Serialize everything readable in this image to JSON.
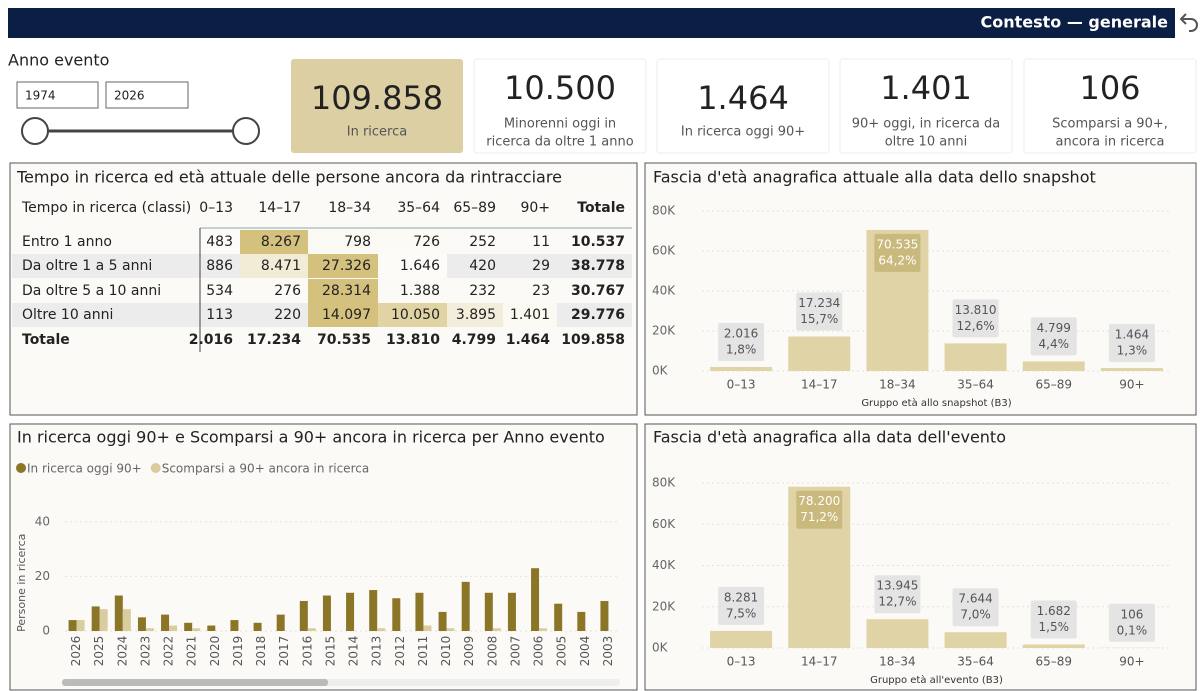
{
  "header": {
    "title": "Contesto — generale"
  },
  "filter": {
    "label": "Anno evento",
    "from": "1974",
    "to": "2026"
  },
  "kpis": [
    {
      "value": "109.858",
      "label": [
        "In ricerca"
      ]
    },
    {
      "value": "10.500",
      "label": [
        "Minorenni oggi in",
        "ricerca da oltre 1 anno"
      ]
    },
    {
      "value": "1.464",
      "label": [
        "In ricerca oggi 90+"
      ]
    },
    {
      "value": "1.401",
      "label": [
        "90+ oggi, in ricerca da",
        "oltre 10 anni"
      ]
    },
    {
      "value": "106",
      "label": [
        "Scomparsi a 90+,",
        "ancora in ricerca"
      ]
    }
  ],
  "table": {
    "title": "Tempo in ricerca ed età attuale delle persone ancora da rintracciare",
    "columns": [
      "Tempo in ricerca (classi)",
      "0–13",
      "14–17",
      "18–34",
      "35–64",
      "65–89",
      "90+",
      "Totale"
    ],
    "rows": [
      [
        "Entro 1 anno",
        "483",
        "8.267",
        "798",
        "726",
        "252",
        "11",
        "10.537"
      ],
      [
        "Da oltre 1 a 5 anni",
        "886",
        "8.471",
        "27.326",
        "1.646",
        "420",
        "29",
        "38.778"
      ],
      [
        "Da oltre 5 a 10 anni",
        "534",
        "276",
        "28.314",
        "1.388",
        "232",
        "23",
        "30.767"
      ],
      [
        "Oltre 10 anni",
        "113",
        "220",
        "14.097",
        "10.050",
        "3.895",
        "1.401",
        "29.776"
      ]
    ],
    "total": [
      "Totale",
      "2.016",
      "17.234",
      "70.535",
      "13.810",
      "4.799",
      "1.464",
      "109.858"
    ]
  },
  "chart_data": [
    {
      "type": "bar",
      "title": "Fascia d'età anagrafica attuale alla data dello snapshot",
      "categories": [
        "0–13",
        "14–17",
        "18–34",
        "35–64",
        "65–89",
        "90+"
      ],
      "values": [
        2016,
        17234,
        70535,
        13810,
        4799,
        1464
      ],
      "value_labels": [
        "2.016",
        "17.234",
        "70.535",
        "13.810",
        "4.799",
        "1.464"
      ],
      "percent_labels": [
        "1,8%",
        "15,7%",
        "64,2%",
        "12,6%",
        "4,4%",
        "1,3%"
      ],
      "x_label": "Gruppo età allo snapshot (B3)",
      "color": "#e0d3a6",
      "ylim": [
        0,
        80000
      ],
      "yticks": [
        {
          "value": 0,
          "label": "0K"
        },
        {
          "value": 20000,
          "label": "20K"
        },
        {
          "value": 40000,
          "label": "40K"
        },
        {
          "value": 60000,
          "label": "60K"
        },
        {
          "value": 80000,
          "label": "80K"
        }
      ]
    },
    {
      "type": "bar",
      "title": "Fascia d'età anagrafica alla data dell'evento",
      "categories": [
        "0–13",
        "14–17",
        "18–34",
        "35–64",
        "65–89",
        "90+"
      ],
      "values": [
        8281,
        78200,
        13945,
        7644,
        1682,
        106
      ],
      "value_labels": [
        "8.281",
        "78.200",
        "13.945",
        "7.644",
        "1.682",
        "106"
      ],
      "percent_labels": [
        "7,5%",
        "71,2%",
        "12,7%",
        "7,0%",
        "1,5%",
        "0,1%"
      ],
      "x_label": "Gruppo età all'evento (B3)",
      "color": "#e0d3a6",
      "ylim": [
        0,
        80000
      ],
      "yticks": [
        {
          "value": 0,
          "label": "0K"
        },
        {
          "value": 20000,
          "label": "20K"
        },
        {
          "value": 40000,
          "label": "40K"
        },
        {
          "value": 60000,
          "label": "60K"
        },
        {
          "value": 80000,
          "label": "80K"
        }
      ]
    },
    {
      "type": "grouped_bar",
      "title": "In ricerca oggi 90+ e Scomparsi a 90+ ancora in ricerca per Anno evento",
      "y_label": "Persone in ricerca",
      "categories": [
        "2026",
        "2025",
        "2024",
        "2023",
        "2022",
        "2021",
        "2020",
        "2019",
        "2018",
        "2017",
        "2016",
        "2015",
        "2014",
        "2013",
        "2012",
        "2011",
        "2010",
        "2009",
        "2008",
        "2007",
        "2006",
        "2005",
        "2004",
        "2003"
      ],
      "series": [
        {
          "name": "In ricerca oggi 90+",
          "color": "#8b7526",
          "values": [
            4,
            9,
            13,
            5,
            6,
            3,
            2,
            4,
            3,
            6,
            11,
            13,
            14,
            15,
            12,
            14,
            7,
            18,
            14,
            14,
            23,
            10,
            7,
            11
          ]
        },
        {
          "name": "Scomparsi a 90+ ancora in ricerca",
          "color": "#d9cc9e",
          "values": [
            4,
            8,
            8,
            1,
            2,
            1,
            0,
            0,
            0,
            0,
            1,
            0,
            0,
            1,
            0,
            2,
            1,
            0,
            1,
            0,
            1,
            0,
            0,
            0
          ]
        }
      ],
      "ylim": [
        0,
        50
      ],
      "yticks": [
        0,
        20,
        40
      ]
    }
  ]
}
